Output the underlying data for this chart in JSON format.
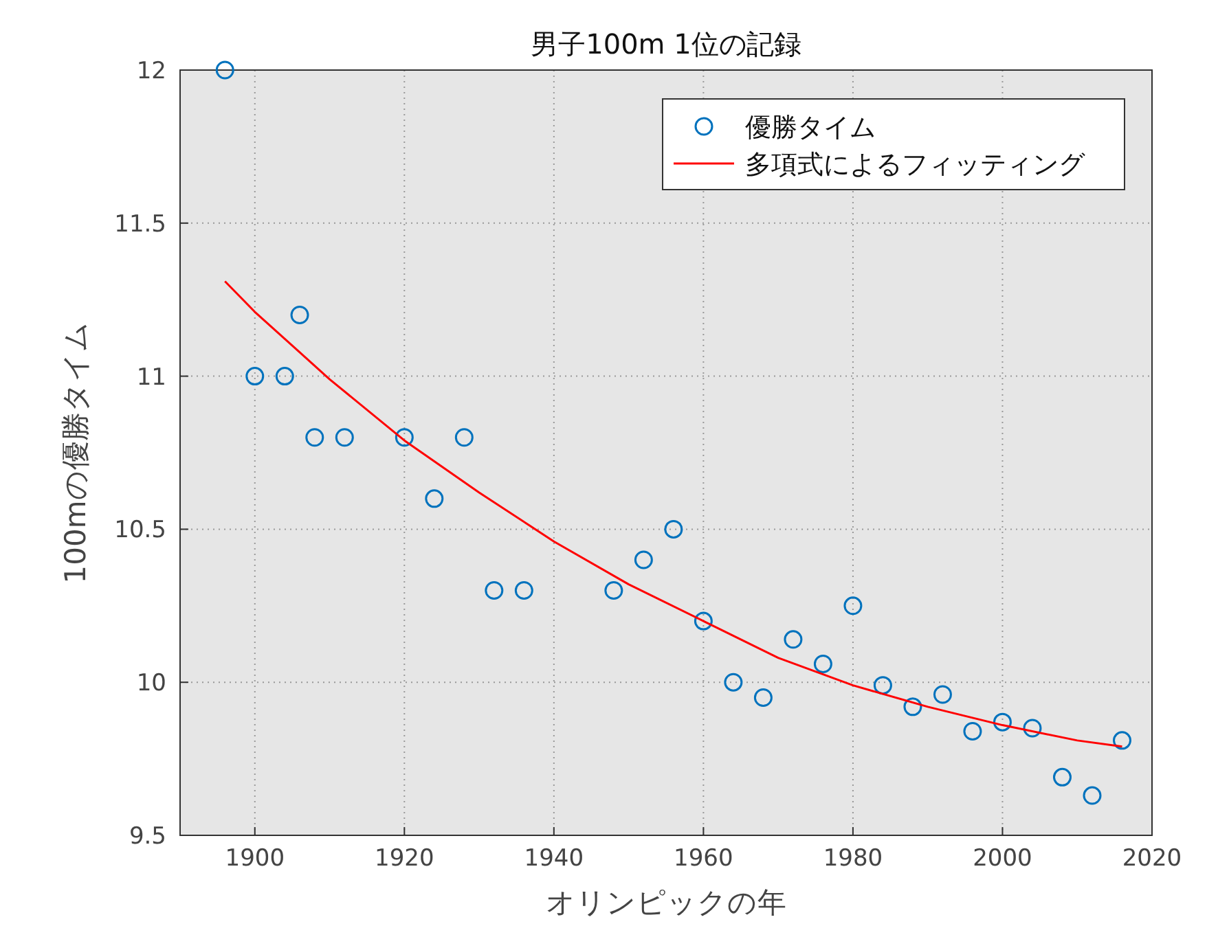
{
  "chart_data": {
    "type": "scatter",
    "title": "男子100m 1位の記録",
    "xlabel": "オリンピックの年",
    "ylabel": "100mの優勝タイム",
    "xlim": [
      1890,
      2020
    ],
    "ylim": [
      9.5,
      12
    ],
    "xticks": [
      1900,
      1920,
      1940,
      1960,
      1980,
      2000,
      2020
    ],
    "yticks": [
      9.5,
      10,
      10.5,
      11,
      11.5,
      12
    ],
    "grid": true,
    "legend": "top right",
    "series": [
      {
        "name": "優勝タイム",
        "marker": "circle",
        "color": "#0072bd",
        "x": [
          1896,
          1900,
          1904,
          1906,
          1908,
          1912,
          1920,
          1924,
          1928,
          1932,
          1936,
          1948,
          1952,
          1956,
          1960,
          1964,
          1968,
          1972,
          1976,
          1980,
          1984,
          1988,
          1992,
          1996,
          2000,
          2004,
          2008,
          2012,
          2016
        ],
        "values": [
          12.0,
          11.0,
          11.0,
          11.2,
          10.8,
          10.8,
          10.8,
          10.6,
          10.8,
          10.3,
          10.3,
          10.3,
          10.4,
          10.5,
          10.2,
          10.0,
          9.95,
          10.14,
          10.06,
          10.25,
          9.99,
          9.92,
          9.96,
          9.84,
          9.87,
          9.85,
          9.69,
          9.63,
          9.81
        ]
      },
      {
        "name": "多項式によるフィッティング",
        "type": "line",
        "line_style": "solid",
        "color": "#ff0000",
        "x": [
          1896,
          1900,
          1910,
          1920,
          1930,
          1940,
          1950,
          1960,
          1970,
          1980,
          1990,
          2000,
          2010,
          2016
        ],
        "values": [
          11.31,
          11.21,
          10.99,
          10.79,
          10.62,
          10.46,
          10.32,
          10.2,
          10.08,
          9.99,
          9.92,
          9.86,
          9.81,
          9.79
        ]
      }
    ]
  }
}
